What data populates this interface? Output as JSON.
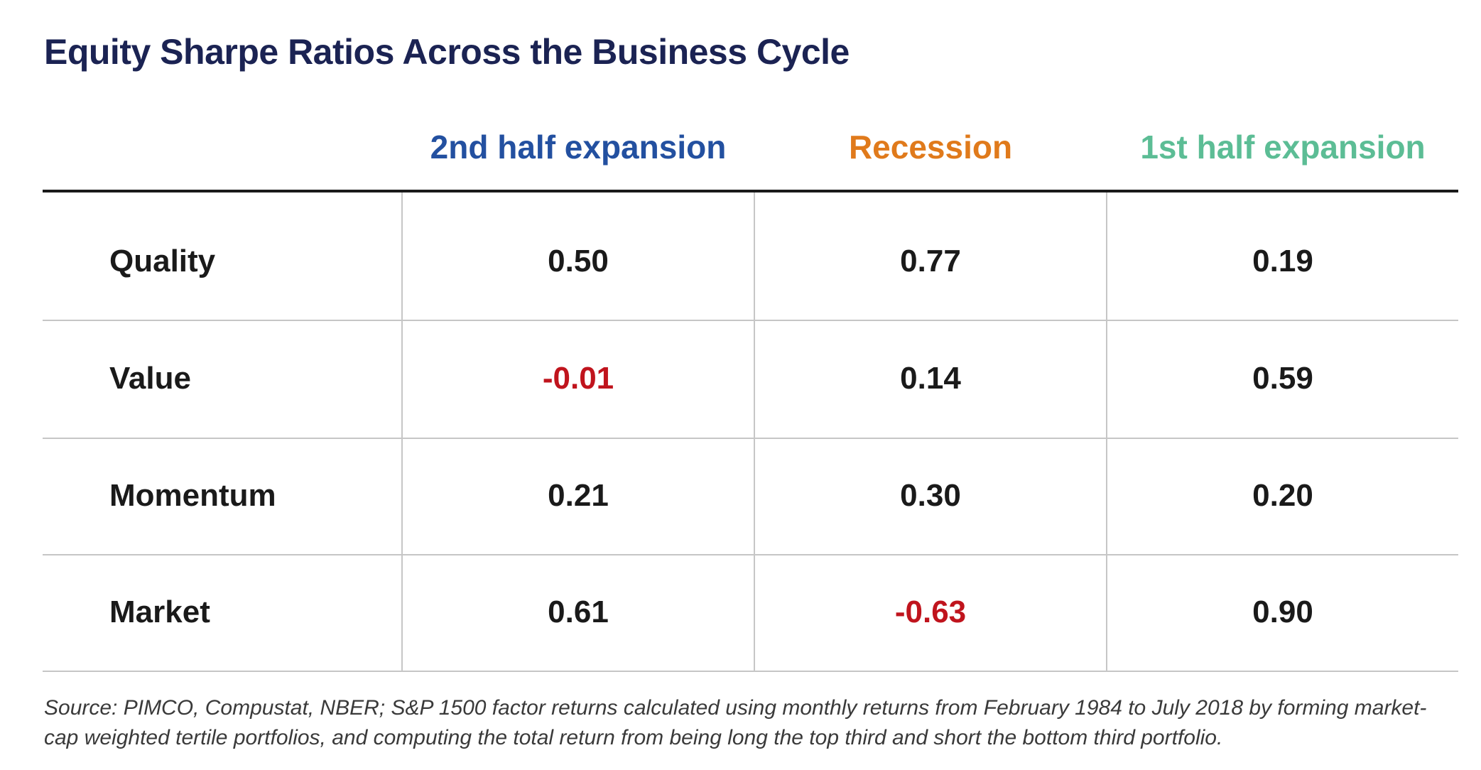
{
  "chart_data": {
    "type": "table",
    "title": "Equity Sharpe Ratios Across the Business Cycle",
    "columns": [
      {
        "label": "2nd half expansion",
        "color": "#2350a0"
      },
      {
        "label": "Recession",
        "color": "#e07a1b"
      },
      {
        "label": "1st half expansion",
        "color": "#5cbd95"
      }
    ],
    "rows": [
      {
        "label": "Quality",
        "values": [
          0.5,
          0.77,
          0.19
        ],
        "display": [
          "0.50",
          "0.77",
          "0.19"
        ]
      },
      {
        "label": "Value",
        "values": [
          -0.01,
          0.14,
          0.59
        ],
        "display": [
          "-0.01",
          "0.14",
          "0.59"
        ]
      },
      {
        "label": "Momentum",
        "values": [
          0.21,
          0.3,
          0.2
        ],
        "display": [
          "0.21",
          "0.30",
          "0.20"
        ]
      },
      {
        "label": "Market",
        "values": [
          0.61,
          -0.63,
          0.9
        ],
        "display": [
          "0.61",
          "-0.63",
          "0.90"
        ]
      }
    ],
    "value_color": "#1a1a1a",
    "negative_color": "#c0141d",
    "source": "Source: PIMCO, Compustat, NBER; S&P 1500 factor returns calculated using monthly returns from February 1984 to July 2018 by forming market-cap weighted tertile portfolios, and computing the total return from being long the top third and short the bottom third portfolio."
  }
}
